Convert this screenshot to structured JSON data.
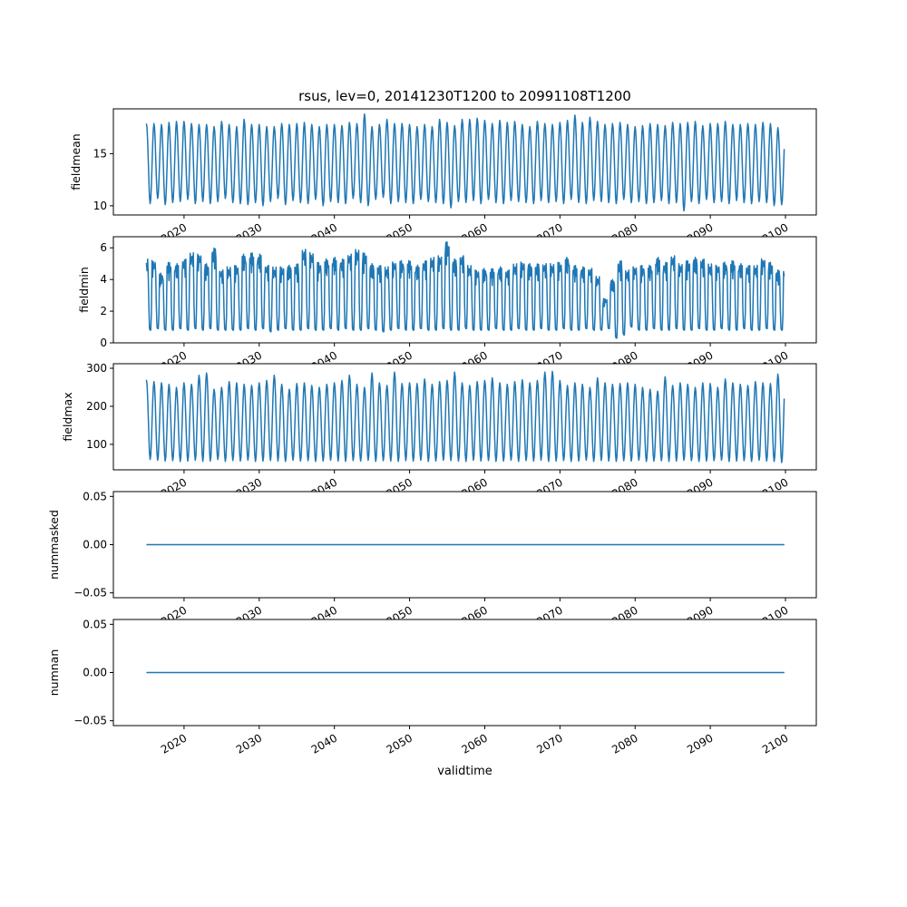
{
  "chart_data": [
    {
      "type": "line",
      "title": "rsus, lev=0, 20141230T1200 to 20991108T1200",
      "xlabel": "validtime",
      "x_ticks": [
        "2020",
        "2030",
        "2040",
        "2050",
        "2060",
        "2070",
        "2080",
        "2090",
        "2100"
      ],
      "x_range": [
        2010.6,
        2104.1
      ],
      "years_from": 2015,
      "color": "#1f77b4",
      "panels": [
        {
          "ylabel": "fieldmean",
          "ylim": [
            9.12,
            19.3
          ],
          "yticks": [
            "10",
            "15"
          ],
          "ytick_values": [
            10,
            15
          ],
          "peaks": [
            17.9,
            17.9,
            17.8,
            18.0,
            18.1,
            18.1,
            17.9,
            17.8,
            17.8,
            17.6,
            18.1,
            17.8,
            17.6,
            18.3,
            17.8,
            17.8,
            17.6,
            17.6,
            17.9,
            17.8,
            17.9,
            18.0,
            17.8,
            17.6,
            17.8,
            17.8,
            17.7,
            18.0,
            17.9,
            18.8,
            17.6,
            17.8,
            18.3,
            17.9,
            17.9,
            17.8,
            17.6,
            17.8,
            17.6,
            18.3,
            18.0,
            17.7,
            18.3,
            18.3,
            18.4,
            18.2,
            17.9,
            18.2,
            18.0,
            18.1,
            17.8,
            17.6,
            18.1,
            17.9,
            17.8,
            18.0,
            18.2,
            18.7,
            18.0,
            18.5,
            18.1,
            17.8,
            17.9,
            18.0,
            17.8,
            17.6,
            17.7,
            17.9,
            17.8,
            17.7,
            18.0,
            17.9,
            18.0,
            18.1,
            17.7,
            17.9,
            17.9,
            18.1,
            17.8,
            17.8,
            17.9,
            17.8,
            18.0,
            17.9,
            17.5
          ],
          "troughs": [
            10.2,
            10.7,
            10.1,
            10.3,
            10.4,
            10.6,
            10.2,
            10.4,
            10.2,
            10.4,
            10.7,
            10.3,
            10.2,
            10.1,
            10.3,
            10.0,
            10.4,
            10.7,
            10.1,
            10.5,
            10.3,
            10.2,
            10.6,
            10.0,
            10.4,
            10.3,
            10.2,
            10.7,
            10.3,
            10.0,
            10.6,
            10.8,
            10.2,
            10.4,
            10.3,
            10.2,
            10.6,
            10.4,
            10.3,
            10.2,
            9.8,
            10.4,
            10.3,
            10.5,
            10.2,
            10.6,
            10.3,
            10.2,
            10.5,
            10.4,
            10.3,
            10.2,
            10.5,
            10.3,
            10.4,
            10.2,
            10.6,
            10.3,
            10.2,
            10.5,
            10.4,
            10.3,
            10.2,
            10.6,
            10.3,
            10.4,
            10.2,
            10.3,
            10.5,
            10.2,
            10.3,
            9.5,
            10.4,
            10.2,
            10.6,
            10.3,
            10.4,
            10.2,
            10.5,
            10.3,
            10.2,
            10.4,
            10.3,
            10.0,
            10.1
          ]
        },
        {
          "ylabel": "fieldmin",
          "ylim": [
            0.0,
            6.7
          ],
          "yticks": [
            "0",
            "2",
            "4",
            "6"
          ],
          "ytick_values": [
            0,
            2,
            4,
            6
          ],
          "peaks": [
            5.3,
            5.2,
            4.4,
            5.1,
            5.0,
            5.3,
            5.7,
            5.6,
            5.0,
            6.0,
            4.6,
            4.8,
            4.9,
            5.6,
            5.7,
            5.6,
            4.9,
            4.8,
            4.8,
            4.9,
            5.0,
            5.9,
            5.7,
            5.1,
            5.3,
            5.4,
            5.3,
            5.6,
            5.9,
            5.7,
            5.0,
            4.9,
            4.8,
            5.1,
            5.2,
            5.2,
            4.9,
            5.2,
            5.4,
            5.5,
            6.4,
            5.3,
            5.5,
            4.9,
            4.6,
            4.7,
            4.7,
            4.8,
            4.6,
            5.0,
            5.1,
            5.0,
            5.0,
            5.0,
            5.0,
            5.1,
            5.4,
            4.9,
            4.8,
            4.7,
            4.2,
            2.8,
            4.0,
            5.2,
            4.6,
            4.8,
            4.9,
            4.9,
            5.4,
            5.1,
            5.5,
            5.0,
            5.2,
            5.4,
            5.3,
            5.0,
            4.9,
            5.1,
            5.2,
            5.0,
            4.9,
            4.9,
            5.3,
            5.1,
            4.6
          ],
          "troughs": [
            0.8,
            0.9,
            0.8,
            0.8,
            0.9,
            0.8,
            0.9,
            0.8,
            0.9,
            0.8,
            0.8,
            0.8,
            0.8,
            0.9,
            0.8,
            0.9,
            0.7,
            0.8,
            0.9,
            0.8,
            0.8,
            0.9,
            0.8,
            0.8,
            0.9,
            0.8,
            0.9,
            0.8,
            0.8,
            0.9,
            0.8,
            0.7,
            0.8,
            0.9,
            0.8,
            0.8,
            0.9,
            0.8,
            0.8,
            0.9,
            0.8,
            0.8,
            0.9,
            0.8,
            0.8,
            0.8,
            0.9,
            0.8,
            0.8,
            0.9,
            0.8,
            0.8,
            0.9,
            0.8,
            0.8,
            0.9,
            0.8,
            0.8,
            0.9,
            0.8,
            0.8,
            0.9,
            0.3,
            0.5,
            1.0,
            0.8,
            0.8,
            0.9,
            0.8,
            0.8,
            0.9,
            0.8,
            0.8,
            0.9,
            0.8,
            0.8,
            0.9,
            0.8,
            0.8,
            0.9,
            0.8,
            0.8,
            0.9,
            0.8,
            0.8
          ]
        },
        {
          "ylabel": "fieldmax",
          "ylim": [
            33,
            312
          ],
          "yticks": [
            "100",
            "200",
            "300"
          ],
          "ytick_values": [
            100,
            200,
            300
          ],
          "peaks": [
            270,
            265,
            262,
            258,
            250,
            262,
            258,
            282,
            288,
            245,
            250,
            265,
            262,
            258,
            255,
            262,
            268,
            282,
            258,
            245,
            260,
            262,
            255,
            250,
            258,
            262,
            268,
            282,
            258,
            250,
            288,
            262,
            255,
            290,
            260,
            262,
            260,
            272,
            258,
            265,
            268,
            290,
            262,
            255,
            265,
            268,
            275,
            262,
            258,
            265,
            270,
            262,
            268,
            290,
            292,
            268,
            255,
            262,
            258,
            250,
            275,
            262,
            258,
            260,
            262,
            258,
            250,
            245,
            240,
            278,
            255,
            262,
            258,
            250,
            262,
            260,
            250,
            272,
            262,
            258,
            255,
            265,
            262,
            260,
            285
          ],
          "troughs": [
            60,
            58,
            56,
            57,
            55,
            56,
            58,
            55,
            56,
            60,
            55,
            57,
            56,
            58,
            55,
            56,
            57,
            56,
            55,
            58,
            56,
            57,
            55,
            56,
            58,
            56,
            55,
            57,
            56,
            58,
            55,
            57,
            56,
            55,
            57,
            56,
            58,
            55,
            56,
            58,
            57,
            56,
            55,
            58,
            56,
            57,
            55,
            56,
            58,
            55,
            57,
            56,
            58,
            55,
            56,
            57,
            55,
            56,
            58,
            55,
            57,
            56,
            55,
            57,
            56,
            58,
            55,
            56,
            57,
            55,
            56,
            58,
            57,
            55,
            56,
            57,
            58,
            55,
            56,
            57,
            55,
            58,
            56,
            55,
            52
          ]
        },
        {
          "ylabel": "nummasked",
          "ylim": [
            -0.055,
            0.055
          ],
          "yticks": [
            "−0.05",
            "0.00",
            "0.05"
          ],
          "ytick_values": [
            -0.05,
            0,
            0.05
          ],
          "constant": 0.0
        },
        {
          "ylabel": "numnan",
          "ylim": [
            -0.055,
            0.055
          ],
          "yticks": [
            "−0.05",
            "0.00",
            "0.05"
          ],
          "ytick_values": [
            -0.05,
            0,
            0.05
          ],
          "constant": 0.0
        }
      ]
    }
  ]
}
